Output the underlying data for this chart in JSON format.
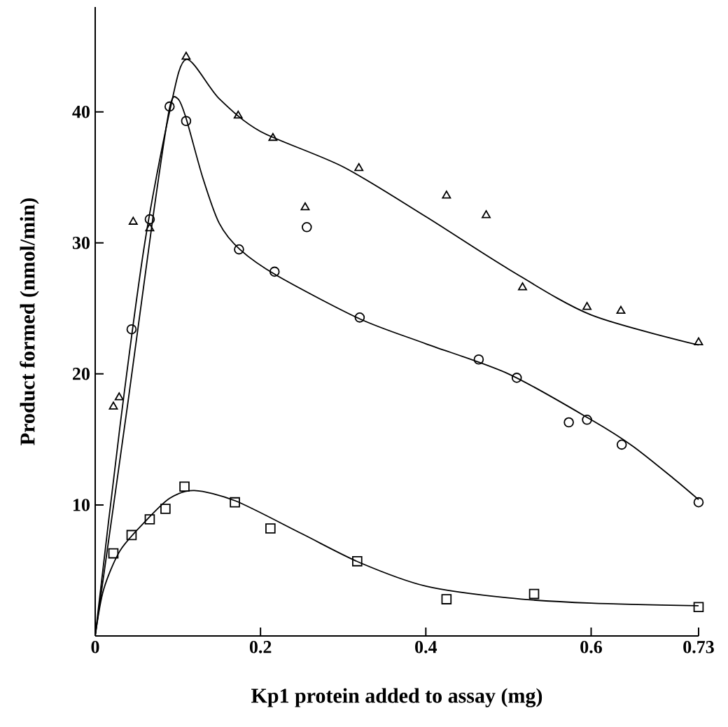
{
  "chart_data": {
    "type": "scatter",
    "xlabel": "Kp1 protein added to assay (mg)",
    "ylabel": "Product formed (nmol/min)",
    "xlim": [
      0,
      0.73
    ],
    "ylim": [
      0,
      48
    ],
    "xticks": [
      0,
      0.2,
      0.4,
      0.6,
      0.73
    ],
    "yticks": [
      10,
      20,
      30,
      40
    ],
    "series": [
      {
        "marker": "triangle",
        "color": "#000000",
        "x": [
          0.022,
          0.029,
          0.046,
          0.066,
          0.11,
          0.173,
          0.215,
          0.254,
          0.319,
          0.425,
          0.473,
          0.517,
          0.595,
          0.636,
          0.73
        ],
        "values": [
          17.5,
          18.2,
          31.6,
          31.1,
          44.2,
          39.7,
          38.0,
          32.7,
          35.7,
          33.6,
          32.1,
          26.6,
          25.1,
          24.8,
          22.4
        ]
      },
      {
        "marker": "circle",
        "color": "#000000",
        "x": [
          0.044,
          0.066,
          0.09,
          0.11,
          0.174,
          0.217,
          0.256,
          0.32,
          0.464,
          0.51,
          0.573,
          0.595,
          0.637,
          0.73
        ],
        "values": [
          23.4,
          31.8,
          40.4,
          39.3,
          29.5,
          27.8,
          31.2,
          24.3,
          21.1,
          19.7,
          16.3,
          16.5,
          14.6,
          10.2
        ]
      },
      {
        "marker": "square",
        "color": "#000000",
        "x": [
          0.022,
          0.044,
          0.066,
          0.085,
          0.108,
          0.169,
          0.212,
          0.317,
          0.425,
          0.531,
          0.73
        ],
        "values": [
          6.3,
          7.7,
          8.9,
          9.7,
          11.4,
          10.2,
          8.2,
          5.7,
          2.8,
          3.2,
          2.2
        ]
      },
      {
        "type": "line",
        "marker": "none",
        "color": "#000000",
        "x": [
          0,
          0.03,
          0.06,
          0.09,
          0.11,
          0.15,
          0.2,
          0.3,
          0.4,
          0.5,
          0.6,
          0.73
        ],
        "values": [
          0,
          16,
          30,
          40,
          44,
          41,
          38.5,
          35.8,
          32,
          28,
          24.5,
          22.2
        ]
      },
      {
        "type": "line",
        "marker": "none",
        "color": "#000000",
        "x": [
          0,
          0.04,
          0.07,
          0.09,
          0.1,
          0.11,
          0.13,
          0.15,
          0.175,
          0.22,
          0.32,
          0.4,
          0.5,
          0.6,
          0.65,
          0.7,
          0.73
        ],
        "values": [
          0,
          18,
          32,
          40.3,
          41,
          39.5,
          35,
          31.5,
          29.5,
          27.5,
          24.2,
          22.3,
          20,
          16.5,
          14.5,
          12,
          10.4
        ]
      },
      {
        "type": "line",
        "marker": "none",
        "color": "#000000",
        "x": [
          0,
          0.01,
          0.03,
          0.06,
          0.09,
          0.12,
          0.17,
          0.25,
          0.32,
          0.4,
          0.5,
          0.6,
          0.73
        ],
        "values": [
          0,
          3.5,
          6.5,
          8.7,
          10.5,
          11.1,
          10.3,
          7.8,
          5.6,
          3.8,
          2.9,
          2.5,
          2.3
        ]
      }
    ]
  }
}
